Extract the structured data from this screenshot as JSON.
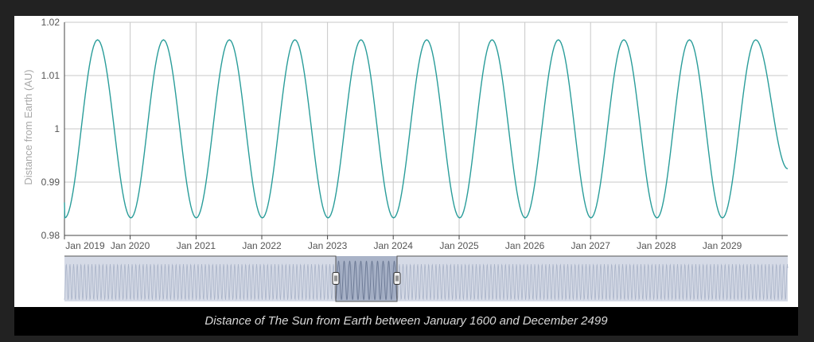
{
  "caption": "Distance of The Sun from Earth between January 1600 and December 2499",
  "colors": {
    "line": "#2a9d9a",
    "grid": "#c8c8c8",
    "axis": "#444444",
    "navigator_fill": "#d5dae6",
    "navigator_line": "#a9b3c8",
    "selection_fill": "#9aa6be",
    "selection_line": "#6f7c97"
  },
  "chart_data": {
    "type": "line",
    "title": "",
    "xlabel": "",
    "ylabel": "Distance from Earth (AU)",
    "x_range": [
      "2019-01-01",
      "2029-12-31"
    ],
    "ylim": [
      0.98,
      1.02
    ],
    "y_ticks": [
      0.98,
      0.99,
      1,
      1.01,
      1.02
    ],
    "y_tick_labels": [
      "0.98",
      "0.99",
      "1",
      "1.01",
      "1.02"
    ],
    "x_ticks": [
      {
        "date": "2019-01-01",
        "label": "Jan 2019"
      },
      {
        "date": "2020-01-01",
        "label": "Jan 2020"
      },
      {
        "date": "2021-01-01",
        "label": "Jan 2021"
      },
      {
        "date": "2022-01-01",
        "label": "Jan 2022"
      },
      {
        "date": "2023-01-01",
        "label": "Jan 2023"
      },
      {
        "date": "2024-01-01",
        "label": "Jan 2024"
      },
      {
        "date": "2025-01-01",
        "label": "Jan 2025"
      },
      {
        "date": "2026-01-01",
        "label": "Jan 2026"
      },
      {
        "date": "2027-01-01",
        "label": "Jan 2027"
      },
      {
        "date": "2028-01-01",
        "label": "Jan 2028"
      },
      {
        "date": "2029-01-01",
        "label": "Jan 2029"
      }
    ],
    "series": [
      {
        "x": [
          "2019-01-03",
          "2019-07-04",
          "2020-01-05",
          "2020-07-04",
          "2021-01-02",
          "2021-07-05",
          "2022-01-04",
          "2022-07-04",
          "2023-01-04",
          "2023-07-06",
          "2024-01-03",
          "2024-07-05",
          "2025-01-04",
          "2025-07-03",
          "2026-01-03",
          "2026-07-06",
          "2027-01-03",
          "2027-07-05",
          "2028-01-05",
          "2028-07-03",
          "2029-01-02",
          "2029-07-06",
          "2029-12-31"
        ],
        "y": [
          0.9833,
          1.0167,
          0.9833,
          1.0167,
          0.9833,
          1.0167,
          0.9833,
          1.0167,
          0.9833,
          1.0167,
          0.9833,
          1.0167,
          0.9833,
          1.0167,
          0.9833,
          1.0167,
          0.9833,
          1.0167,
          0.9833,
          1.0167,
          0.9833,
          1.0167,
          0.9925
        ]
      }
    ],
    "grid": true,
    "legend": "none",
    "navigator": {
      "x_range": [
        "1600-01-01",
        "2499-12-31"
      ],
      "selection": [
        "2019-01-01",
        "2029-12-31"
      ]
    }
  }
}
